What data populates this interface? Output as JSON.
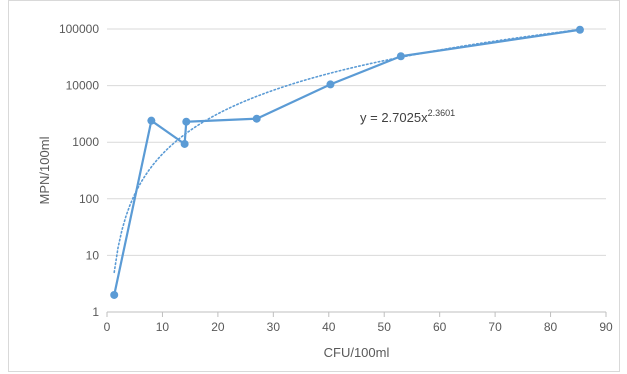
{
  "chart_data": {
    "type": "scatter",
    "xlabel": "CFU/100ml",
    "ylabel": "MPN/100ml",
    "xlim": [
      0,
      90
    ],
    "ylim": [
      1,
      100000
    ],
    "yscale": "log",
    "grid": "horizontal",
    "x_ticks": [
      "0",
      "10",
      "20",
      "30",
      "40",
      "50",
      "60",
      "70",
      "80",
      "90"
    ],
    "y_ticks": [
      "1",
      "10",
      "100",
      "1000",
      "10000",
      "100000"
    ],
    "series": [
      {
        "x": [
          1.3,
          8,
          14,
          14.3,
          27,
          40.3,
          53,
          85.3
        ],
        "y": [
          2,
          2400,
          930,
          2300,
          2600,
          10500,
          33000,
          97000
        ],
        "color": "#5b9bd5",
        "style": "line-markers"
      }
    ],
    "trendline": {
      "type": "power",
      "a": 2.7025,
      "b": 2.3601,
      "x_range": [
        1.3,
        85.3
      ],
      "style": "dotted",
      "color": "#5b9bd5",
      "label_main": "y = 2.7025x",
      "label_exp": "2.3601"
    }
  }
}
